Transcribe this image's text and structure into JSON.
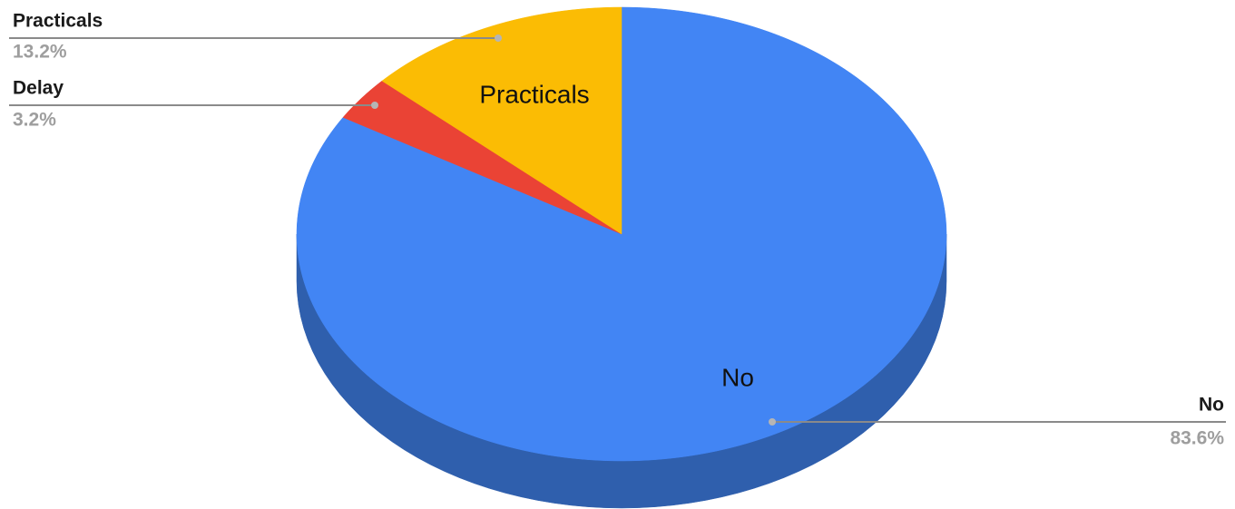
{
  "chart_data": {
    "type": "pie",
    "title": "",
    "slices": [
      {
        "label": "No",
        "percent": "83.6%",
        "value": 83.6,
        "color": "#4285f4",
        "side_color": "#2f5fad",
        "inner_label": "No"
      },
      {
        "label": "Delay",
        "percent": "3.2%",
        "value": 3.2,
        "color": "#ea4335",
        "side_color": "#a83227",
        "inner_label": ""
      },
      {
        "label": "Practicals",
        "percent": "13.2%",
        "value": 13.2,
        "color": "#fbbc04",
        "side_color": "#b58703",
        "inner_label": "Practicals"
      }
    ],
    "style": "3d",
    "start": "top, clockwise"
  }
}
